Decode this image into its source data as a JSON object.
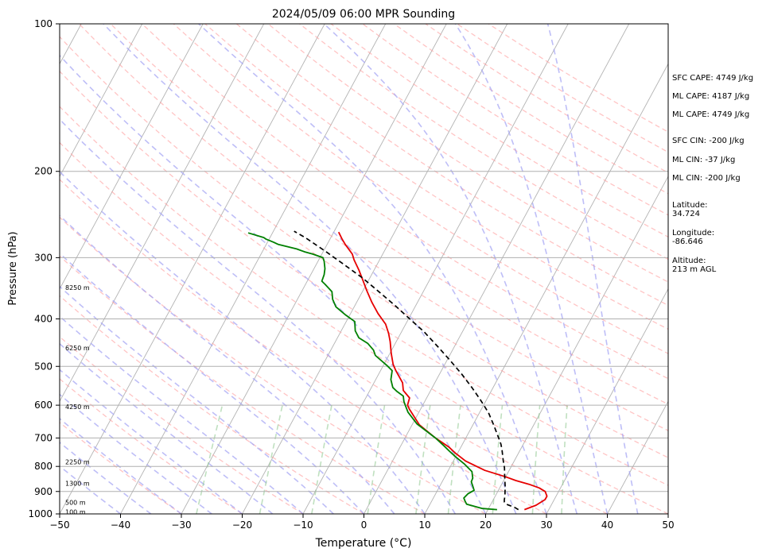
{
  "chart_data": {
    "type": "line",
    "title": "2024/05/09 06:00 MPR Sounding",
    "xlabel": "Temperature (°C)",
    "ylabel": "Pressure (hPa)",
    "xlim": [
      -50,
      50
    ],
    "ylim": [
      1000,
      100
    ],
    "y_scale": "log",
    "grid": true,
    "x_ticks": [
      -50,
      -40,
      -30,
      -20,
      -10,
      0,
      10,
      20,
      30,
      40,
      50
    ],
    "y_ticks": [
      100,
      200,
      300,
      400,
      500,
      600,
      700,
      800,
      900,
      1000
    ],
    "height_labels": [
      {
        "label": "8250 m",
        "p": 345
      },
      {
        "label": "6250 m",
        "p": 458
      },
      {
        "label": "4250 m",
        "p": 604
      },
      {
        "label": "2250 m",
        "p": 783
      },
      {
        "label": "1300 m",
        "p": 866
      },
      {
        "label": "500 m",
        "p": 947
      },
      {
        "label": "100 m",
        "p": 990
      }
    ],
    "series": [
      {
        "color": "#e60000",
        "dash": "solid",
        "points": [
          [
            26.0,
            980
          ],
          [
            27.5,
            960
          ],
          [
            28.5,
            935
          ],
          [
            28.5,
            920
          ],
          [
            27.8,
            900
          ],
          [
            26.5,
            885
          ],
          [
            24.5,
            870
          ],
          [
            22.0,
            855
          ],
          [
            20.0,
            840
          ],
          [
            16.0,
            815
          ],
          [
            12.0,
            780
          ],
          [
            9.5,
            750
          ],
          [
            8.0,
            730
          ],
          [
            5.0,
            700
          ],
          [
            1.2,
            658
          ],
          [
            -1.8,
            612
          ],
          [
            -2.5,
            600
          ],
          [
            -2.8,
            580
          ],
          [
            -4.5,
            560
          ],
          [
            -5.3,
            540
          ],
          [
            -7.5,
            510
          ],
          [
            -8.5,
            495
          ],
          [
            -9.8,
            470
          ],
          [
            -11.0,
            445
          ],
          [
            -12.0,
            428
          ],
          [
            -13.3,
            410
          ],
          [
            -15.5,
            390
          ],
          [
            -17.5,
            370
          ],
          [
            -19.4,
            350
          ],
          [
            -21.0,
            333
          ],
          [
            -22.5,
            318
          ],
          [
            -24.2,
            303
          ],
          [
            -25.0,
            295
          ],
          [
            -27.0,
            282
          ],
          [
            -28.0,
            275
          ],
          [
            -29.2,
            266
          ]
        ]
      },
      {
        "color": "#008000",
        "dash": "solid",
        "points": [
          [
            21.5,
            980
          ],
          [
            19.0,
            975
          ],
          [
            17.5,
            965
          ],
          [
            16.0,
            955
          ],
          [
            15.5,
            942
          ],
          [
            15.0,
            928
          ],
          [
            15.3,
            910
          ],
          [
            16.0,
            895
          ],
          [
            15.5,
            880
          ],
          [
            14.8,
            860
          ],
          [
            14.7,
            845
          ],
          [
            14.0,
            820
          ],
          [
            12.0,
            790
          ],
          [
            10.0,
            765
          ],
          [
            8.5,
            745
          ],
          [
            7.0,
            725
          ],
          [
            5.0,
            700
          ],
          [
            0.7,
            655
          ],
          [
            -1.8,
            620
          ],
          [
            -2.6,
            605
          ],
          [
            -3.4,
            590
          ],
          [
            -4.0,
            575
          ],
          [
            -5.5,
            562
          ],
          [
            -6.5,
            552
          ],
          [
            -7.5,
            532
          ],
          [
            -8.1,
            510
          ],
          [
            -9.4,
            498
          ],
          [
            -12.2,
            475
          ],
          [
            -13.0,
            463
          ],
          [
            -14.5,
            449
          ],
          [
            -16.5,
            437
          ],
          [
            -17.7,
            423
          ],
          [
            -18.6,
            405
          ],
          [
            -20.8,
            392
          ],
          [
            -23.0,
            378
          ],
          [
            -24.2,
            365
          ],
          [
            -25.0,
            352
          ],
          [
            -26.8,
            340
          ],
          [
            -27.6,
            335
          ],
          [
            -27.8,
            325
          ],
          [
            -28.2,
            316
          ],
          [
            -29.0,
            305
          ],
          [
            -29.5,
            300
          ],
          [
            -31.5,
            295
          ],
          [
            -33.0,
            292
          ],
          [
            -34.6,
            288
          ],
          [
            -38.0,
            282
          ],
          [
            -39.0,
            279
          ],
          [
            -40.5,
            275
          ],
          [
            -41.0,
            273
          ],
          [
            -44.0,
            267
          ]
        ]
      },
      {
        "color": "#000000",
        "dash": "dashed",
        "points": [
          [
            25.0,
            980
          ],
          [
            24.2,
            970
          ],
          [
            22.5,
            955
          ],
          [
            22.0,
            945
          ],
          [
            21.8,
            935
          ],
          [
            21.6,
            920
          ],
          [
            21.2,
            900
          ],
          [
            20.8,
            880
          ],
          [
            20.2,
            855
          ],
          [
            19.6,
            830
          ],
          [
            19.0,
            805
          ],
          [
            18.2,
            780
          ],
          [
            17.6,
            760
          ],
          [
            17.0,
            740
          ],
          [
            16.3,
            720
          ],
          [
            15.4,
            700
          ],
          [
            13.5,
            660
          ],
          [
            11.5,
            622
          ],
          [
            9.0,
            585
          ],
          [
            6.5,
            552
          ],
          [
            3.6,
            518
          ],
          [
            0.4,
            485
          ],
          [
            -2.8,
            455
          ],
          [
            -6.3,
            425
          ],
          [
            -9.8,
            400
          ],
          [
            -13.5,
            375
          ],
          [
            -17.3,
            352
          ],
          [
            -21.2,
            330
          ],
          [
            -25.4,
            310
          ],
          [
            -29.7,
            291
          ],
          [
            -34.2,
            273
          ],
          [
            -36.6,
            265
          ]
        ]
      }
    ]
  },
  "info": {
    "sfc_cape": "SFC CAPE: 4749 J/kg",
    "ml_cape_1": "ML CAPE: 4187 J/kg",
    "ml_cape_2": "ML CAPE: 4749 J/kg",
    "sfc_cin": "SFC CIN: -200 J/kg",
    "ml_cin_1": "ML CIN: -37 J/kg",
    "ml_cin_2": "ML CIN: -200 J/kg",
    "latitude_label": "Latitude:",
    "latitude_value": "34.724",
    "longitude_label": "Longitude:",
    "longitude_value": "-86.646",
    "altitude_label": "Altitude:",
    "altitude_value": "213 m AGL"
  }
}
